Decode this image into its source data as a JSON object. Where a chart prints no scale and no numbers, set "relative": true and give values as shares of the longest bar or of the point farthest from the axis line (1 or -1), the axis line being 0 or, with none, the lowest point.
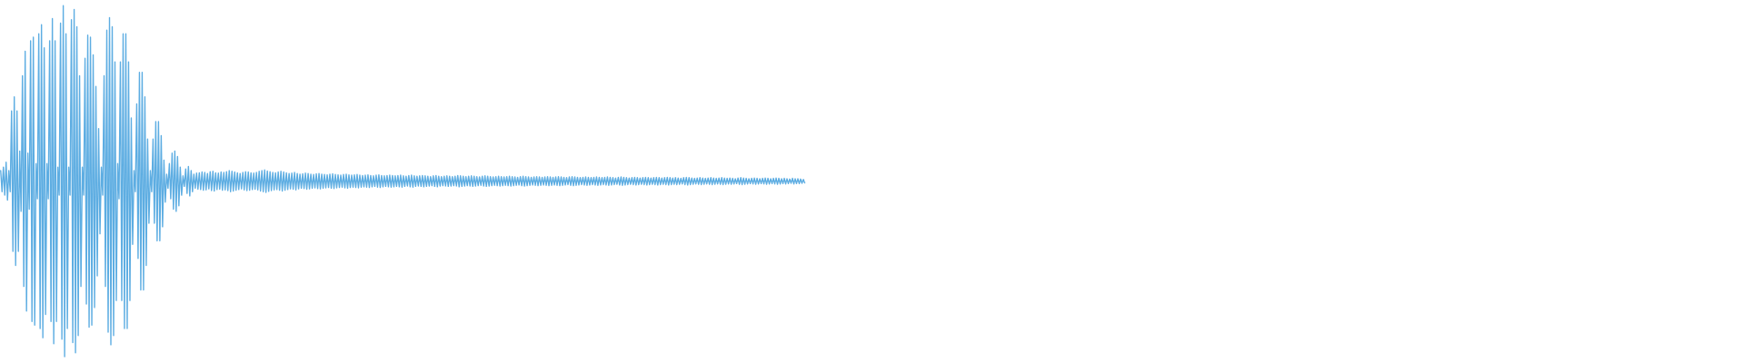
{
  "chart_data": {
    "type": "line",
    "relative": true,
    "categories": [
      null,
      null,
      null,
      null,
      null,
      null,
      null,
      null,
      null,
      null,
      null,
      null,
      null,
      null,
      null,
      null,
      null,
      null,
      null,
      null,
      null,
      null,
      null,
      null,
      null,
      null,
      null,
      null,
      null,
      null,
      null,
      null,
      null,
      null,
      null,
      null,
      null,
      null,
      null,
      null,
      null,
      null,
      null,
      null,
      null,
      null,
      null,
      null,
      null,
      null,
      null,
      null,
      null,
      null,
      null,
      null,
      null,
      null,
      null,
      null,
      null,
      null,
      null,
      null,
      null,
      null,
      null,
      null,
      null,
      null,
      null,
      null,
      null,
      null,
      null,
      null,
      null,
      null,
      null,
      null,
      null,
      null,
      null,
      null,
      null,
      null,
      null,
      null,
      null,
      null,
      null,
      null,
      null,
      null,
      null,
      null,
      null,
      null,
      null,
      null,
      null,
      null,
      null,
      null,
      null,
      null,
      null,
      null,
      null,
      null,
      null,
      null,
      null,
      null,
      null,
      null,
      null,
      null,
      null,
      null,
      null,
      null,
      null,
      null,
      null,
      null,
      null,
      null,
      null,
      null,
      null,
      null,
      null,
      null,
      null,
      null,
      null,
      null,
      null,
      null,
      null,
      null,
      null,
      null,
      null,
      null,
      null,
      null,
      null,
      null,
      null,
      null,
      null,
      null,
      null,
      null,
      null,
      null,
      null,
      null,
      null,
      null,
      null,
      null,
      null,
      null,
      null,
      null,
      null,
      null,
      null,
      null,
      null,
      null,
      null,
      null,
      null,
      null,
      null,
      null,
      null,
      null,
      null,
      null,
      null,
      null,
      null,
      null,
      null,
      null,
      null,
      null,
      null,
      null,
      null,
      null,
      null,
      null,
      null,
      null,
      null,
      null,
      null,
      null,
      null,
      null,
      null,
      null,
      null,
      null,
      null,
      null,
      null,
      null,
      null,
      null,
      null,
      null,
      null,
      null,
      null,
      null,
      null,
      null,
      null,
      null,
      null,
      null,
      null,
      null,
      null,
      null,
      null,
      null,
      null,
      null,
      null,
      null,
      null,
      null,
      null,
      null,
      null,
      null,
      null,
      null,
      null,
      null,
      null,
      null,
      null,
      null,
      null,
      null,
      null,
      null,
      null,
      null,
      null,
      null,
      null,
      null,
      null,
      null,
      null,
      null,
      null,
      null,
      null,
      null,
      null,
      null,
      null,
      null,
      null,
      null,
      null,
      null,
      null,
      null,
      null,
      null,
      null,
      null,
      null,
      null,
      null,
      null,
      null,
      null,
      null,
      null,
      null,
      null,
      null,
      null,
      null,
      null,
      null,
      null,
      null,
      null,
      null,
      null,
      null,
      null,
      null,
      null,
      null,
      null,
      null,
      null,
      null,
      null,
      null,
      null,
      null,
      null,
      null,
      null,
      null,
      null,
      null,
      null,
      null,
      null,
      null,
      null,
      null,
      null,
      null,
      null,
      null,
      null,
      null,
      null,
      null,
      null,
      null,
      null,
      null,
      null,
      null,
      null,
      null,
      null,
      null,
      null,
      null,
      null,
      null,
      null,
      null,
      null,
      null,
      null,
      null,
      null,
      null,
      null,
      null,
      null,
      null,
      null,
      null,
      null,
      null,
      null,
      null,
      null,
      null,
      null,
      null,
      null,
      null,
      null,
      null,
      null,
      null,
      null,
      null,
      null,
      null,
      null,
      null,
      null,
      null,
      null,
      null,
      null,
      null,
      null,
      null,
      null,
      null,
      null,
      null,
      null,
      null,
      null,
      null,
      null,
      null,
      null,
      null,
      null,
      null,
      null,
      null,
      null,
      null,
      null,
      null,
      null,
      null,
      null,
      null,
      null,
      null,
      null,
      null,
      null,
      null,
      null,
      null,
      null,
      null,
      null,
      null,
      null,
      null,
      null,
      null,
      null,
      null,
      null,
      null,
      null,
      null,
      null,
      null,
      null,
      null,
      null,
      null,
      null,
      null,
      null,
      null,
      null,
      null,
      null,
      null,
      null,
      null,
      null,
      null,
      null,
      null,
      null,
      null,
      null,
      null,
      null,
      null,
      null,
      null,
      null,
      null,
      null,
      null,
      null,
      null,
      null,
      null,
      null,
      null,
      null,
      null,
      null,
      null,
      null,
      null,
      null,
      null,
      null,
      null,
      null,
      null,
      null,
      null,
      null,
      null,
      null,
      null,
      null,
      null,
      null,
      null,
      null,
      null,
      null,
      null,
      null,
      null,
      null,
      null,
      null,
      null,
      null,
      null,
      null,
      null,
      null,
      null,
      null,
      null,
      null,
      null,
      null,
      null,
      null,
      null,
      null,
      null,
      null,
      null,
      null,
      null,
      null,
      null,
      null,
      null,
      null,
      null,
      null,
      null,
      null,
      null,
      null,
      null,
      null,
      null,
      null,
      null,
      null,
      null,
      null,
      null,
      null,
      null,
      null,
      null,
      null,
      null,
      null,
      null,
      null,
      null,
      null,
      null,
      null,
      null,
      null,
      null,
      null,
      null,
      null,
      null,
      null,
      null,
      null,
      null,
      null,
      null,
      null,
      null,
      null,
      null,
      null,
      null,
      null,
      null,
      null,
      null,
      null,
      null,
      null,
      null,
      null,
      null,
      null
    ],
    "series": [
      {
        "color": "#5dade2",
        "values": [
          0.53,
          0.47,
          0.54,
          0.46,
          0.554,
          0.446,
          0.53,
          0.47,
          0.7,
          0.3,
          0.74,
          0.26,
          0.7,
          0.3,
          0.586,
          0.414,
          0.8,
          0.2,
          0.87,
          0.13,
          0.58,
          0.42,
          0.9,
          0.1,
          0.91,
          0.09,
          0.55,
          0.45,
          0.92,
          0.08,
          0.946,
          0.054,
          0.88,
          0.12,
          0.55,
          0.45,
          0.9,
          0.1,
          0.963,
          0.037,
          0.9,
          0.1,
          0.54,
          0.46,
          0.95,
          0.05,
          1,
          0,
          0.92,
          0.08,
          0.54,
          0.46,
          0.96,
          0.04,
          0.989,
          0.011,
          0.94,
          0.06,
          0.8,
          0.2,
          0.54,
          0.46,
          0.85,
          0.15,
          0.916,
          0.084,
          0.91,
          0.09,
          0.86,
          0.14,
          0.77,
          0.23,
          0.65,
          0.35,
          0.54,
          0.46,
          0.8,
          0.2,
          0.93,
          0.07,
          0.966,
          0.034,
          0.94,
          0.06,
          0.84,
          0.16,
          0.55,
          0.45,
          0.84,
          0.16,
          0.92,
          0.08,
          0.92,
          0.08,
          0.84,
          0.16,
          0.68,
          0.32,
          0.53,
          0.47,
          0.72,
          0.28,
          0.81,
          0.19,
          0.81,
          0.19,
          0.74,
          0.26,
          0.62,
          0.38,
          0.53,
          0.47,
          0.62,
          0.38,
          0.67,
          0.33,
          0.67,
          0.33,
          0.63,
          0.37,
          0.56,
          0.44,
          0.52,
          0.48,
          0.55,
          0.45,
          0.58,
          0.42,
          0.586,
          0.414,
          0.57,
          0.43,
          0.54,
          0.46,
          0.515,
          0.485,
          0.535,
          0.465,
          0.542,
          0.458,
          0.53,
          0.47,
          0.52,
          0.48,
          0.523,
          0.477,
          0.524,
          0.476,
          0.526,
          0.474,
          0.525,
          0.475,
          0.522,
          0.478,
          0.527,
          0.473,
          0.528,
          0.472,
          0.524,
          0.476,
          0.523,
          0.477,
          0.526,
          0.474,
          0.525,
          0.475,
          0.527,
          0.473,
          0.53,
          0.47,
          0.528,
          0.472,
          0.526,
          0.474,
          0.524,
          0.476,
          0.522,
          0.478,
          0.525,
          0.475,
          0.527,
          0.473,
          0.526,
          0.474,
          0.524,
          0.476,
          0.523,
          0.477,
          0.525,
          0.475,
          0.528,
          0.472,
          0.53,
          0.47,
          0.532,
          0.468,
          0.529,
          0.471,
          0.527,
          0.473,
          0.525,
          0.475,
          0.524,
          0.476,
          0.526,
          0.474,
          0.528,
          0.472,
          0.526,
          0.474,
          0.524,
          0.476,
          0.522,
          0.478,
          0.523,
          0.477,
          0.525,
          0.475,
          0.522,
          0.478,
          0.52,
          0.48,
          0.521,
          0.479,
          0.523,
          0.477,
          0.522,
          0.478,
          0.52,
          0.48,
          0.519,
          0.481,
          0.521,
          0.479,
          0.522,
          0.478,
          0.52,
          0.48,
          0.519,
          0.481,
          0.518,
          0.482,
          0.52,
          0.48,
          0.521,
          0.479,
          0.519,
          0.481,
          0.518,
          0.482,
          0.517,
          0.483,
          0.519,
          0.481,
          0.52,
          0.48,
          0.518,
          0.482,
          0.517,
          0.483,
          0.518,
          0.482,
          0.519,
          0.481,
          0.517,
          0.483,
          0.516,
          0.484,
          0.517,
          0.483,
          0.518,
          0.482,
          0.516,
          0.484,
          0.515,
          0.485,
          0.517,
          0.483,
          0.518,
          0.482,
          0.516,
          0.484,
          0.515,
          0.485,
          0.516,
          0.484,
          0.517,
          0.483,
          0.516,
          0.484,
          0.515,
          0.485,
          0.516,
          0.484,
          0.517,
          0.483,
          0.515,
          0.485,
          0.514,
          0.486,
          0.516,
          0.484,
          0.517,
          0.483,
          0.515,
          0.485,
          0.514,
          0.486,
          0.515,
          0.485,
          0.516,
          0.484,
          0.515,
          0.485,
          0.514,
          0.486,
          0.513,
          0.487,
          0.515,
          0.485,
          0.516,
          0.484,
          0.514,
          0.486,
          0.513,
          0.487,
          0.514,
          0.486,
          0.515,
          0.485,
          0.514,
          0.486,
          0.513,
          0.487,
          0.514,
          0.486,
          0.516,
          0.484,
          0.515,
          0.485,
          0.514,
          0.486,
          0.513,
          0.487,
          0.514,
          0.486,
          0.515,
          0.485,
          0.514,
          0.486,
          0.513,
          0.487,
          0.512,
          0.488,
          0.514,
          0.486,
          0.515,
          0.485,
          0.514,
          0.486,
          0.513,
          0.487,
          0.512,
          0.488,
          0.513,
          0.487,
          0.514,
          0.486,
          0.513,
          0.487,
          0.512,
          0.488,
          0.513,
          0.487,
          0.514,
          0.486,
          0.513,
          0.487,
          0.512,
          0.488,
          0.511,
          0.489,
          0.513,
          0.487,
          0.514,
          0.486,
          0.513,
          0.487,
          0.512,
          0.488,
          0.511,
          0.489,
          0.512,
          0.488,
          0.513,
          0.487,
          0.512,
          0.488,
          0.511,
          0.489,
          0.512,
          0.488,
          0.513,
          0.487,
          0.512,
          0.488,
          0.511,
          0.489,
          0.512,
          0.488,
          0.513,
          0.487,
          0.512,
          0.488,
          0.511,
          0.489,
          0.51,
          0.49,
          0.512,
          0.488,
          0.513,
          0.487,
          0.512,
          0.488,
          0.511,
          0.489,
          0.51,
          0.49,
          0.511,
          0.489,
          0.512,
          0.488,
          0.511,
          0.489,
          0.51,
          0.49,
          0.511,
          0.489,
          0.512,
          0.488,
          0.511,
          0.489,
          0.51,
          0.49,
          0.511,
          0.489,
          0.512,
          0.488,
          0.511,
          0.489,
          0.51,
          0.49,
          0.509,
          0.491,
          0.511,
          0.489,
          0.512,
          0.488,
          0.511,
          0.489,
          0.51,
          0.49,
          0.509,
          0.491,
          0.51,
          0.49,
          0.511,
          0.489,
          0.51,
          0.49,
          0.509,
          0.491,
          0.51,
          0.49,
          0.511,
          0.489,
          0.51,
          0.49,
          0.509,
          0.491,
          0.51,
          0.49,
          0.511,
          0.489,
          0.51,
          0.49,
          0.509,
          0.491,
          0.51,
          0.49,
          0.511,
          0.489,
          0.51,
          0.49,
          0.509,
          0.491,
          0.51,
          0.49,
          0.509,
          0.491,
          0.508,
          0.492,
          0.51,
          0.49,
          0.511,
          0.489,
          0.51,
          0.49,
          0.509,
          0.491,
          0.508,
          0.492,
          0.509,
          0.491,
          0.51,
          0.49,
          0.509,
          0.491,
          0.508,
          0.492,
          0.509,
          0.491,
          0.51,
          0.49,
          0.509,
          0.491,
          0.508,
          0.492,
          0.509,
          0.491,
          0.51,
          0.49,
          0.509,
          0.491,
          0.508,
          0.492,
          0.509,
          0.491,
          0.508,
          0.492,
          0.507,
          0.493,
          0.509,
          0.491,
          0.51,
          0.49,
          0.509,
          0.491,
          0.508,
          0.492,
          0.507,
          0.493,
          0.508,
          0.492,
          0.509,
          0.491,
          0.508,
          0.492,
          0.507,
          0.493,
          0.508,
          0.492,
          0.509,
          0.491,
          0.508,
          0.492,
          0.507,
          0.493,
          0.508,
          0.492,
          0.509,
          0.491,
          0.508,
          0.492,
          0.507,
          0.493,
          0.508,
          0.492,
          0.507,
          0.493,
          0.506,
          0.494,
          0.508,
          0.492,
          0.507,
          0.493,
          0.507,
          0.493,
          0.506,
          0.494,
          0.505,
          0.495
        ]
      }
    ]
  }
}
